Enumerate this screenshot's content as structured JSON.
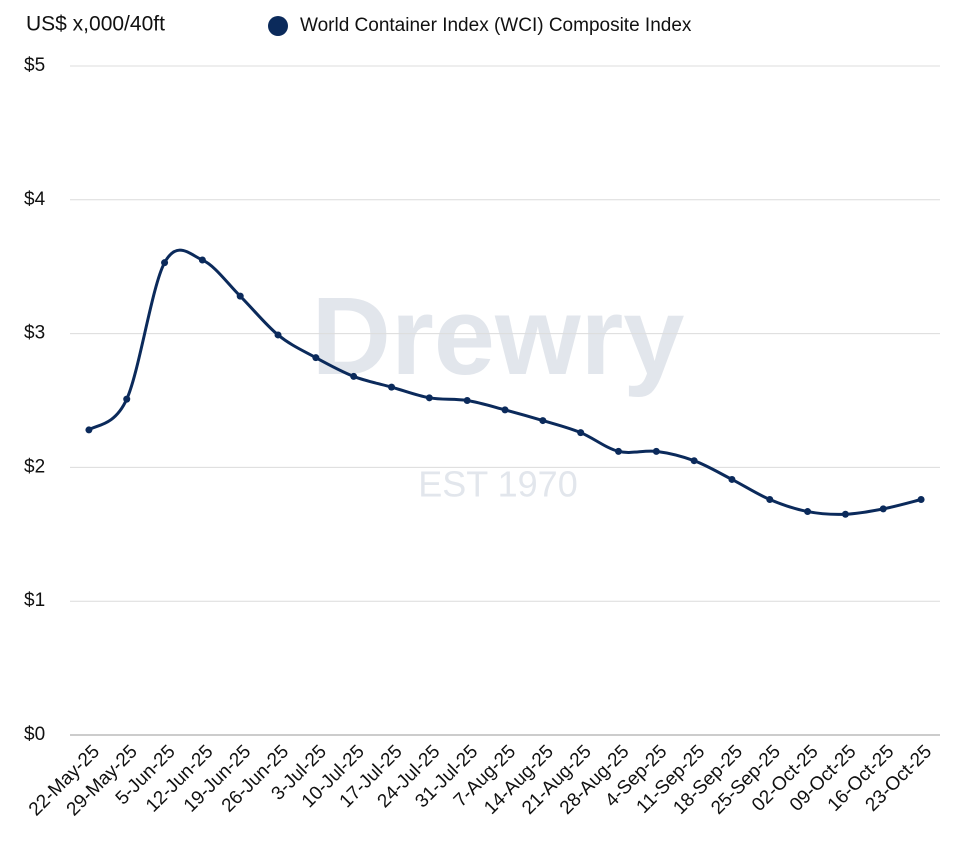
{
  "chart_data": {
    "type": "line",
    "y_label": "US$ x,000/40ft",
    "watermark": [
      "Drewry",
      "EST 1970"
    ],
    "categories": [
      "22-May-25",
      "29-May-25",
      "5-Jun-25",
      "12-Jun-25",
      "19-Jun-25",
      "26-Jun-25",
      "3-Jul-25",
      "10-Jul-25",
      "17-Jul-25",
      "24-Jul-25",
      "31-Jul-25",
      "7-Aug-25",
      "14-Aug-25",
      "21-Aug-25",
      "28-Aug-25",
      "4-Sep-25",
      "11-Sep-25",
      "18-Sep-25",
      "25-Sep-25",
      "02-Oct-25",
      "09-Oct-25",
      "16-Oct-25",
      "23-Oct-25"
    ],
    "series": [
      {
        "name": "World Container Index (WCI) Composite Index",
        "color": "#0b2a5b",
        "values": [
          2.28,
          2.51,
          3.53,
          3.55,
          3.28,
          2.99,
          2.82,
          2.68,
          2.6,
          2.52,
          2.5,
          2.43,
          2.35,
          2.26,
          2.12,
          2.12,
          2.05,
          1.91,
          1.76,
          1.67,
          1.65,
          1.69,
          1.76
        ]
      }
    ],
    "ylim": [
      0,
      5
    ],
    "yticks": [
      {
        "value": 0,
        "label": "$0"
      },
      {
        "value": 1,
        "label": "$1"
      },
      {
        "value": 2,
        "label": "$2"
      },
      {
        "value": 3,
        "label": "$3"
      },
      {
        "value": 4,
        "label": "$4"
      },
      {
        "value": 5,
        "label": "$5"
      }
    ],
    "grid": true
  }
}
